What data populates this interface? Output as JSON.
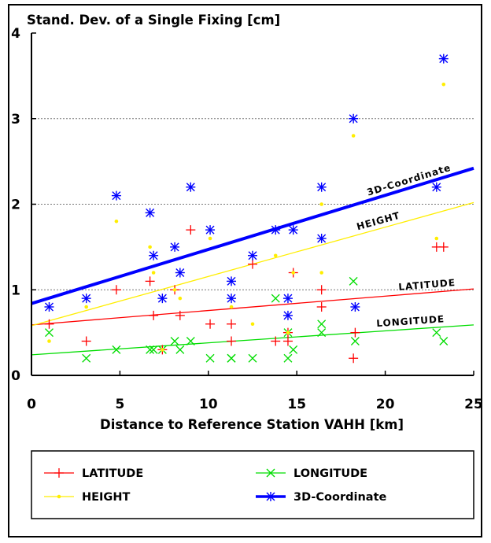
{
  "chart_data": {
    "type": "scatter",
    "title": "Stand. Dev. of a Single Fixing [cm]",
    "xlabel": "Distance to Reference Station VAHH [km]",
    "ylabel": "",
    "xlim": [
      0,
      25
    ],
    "ylim": [
      0,
      4
    ],
    "xticks": [
      "0",
      "5",
      "10",
      "15",
      "20",
      "25"
    ],
    "yticks": [
      "0",
      "1",
      "2",
      "3",
      "4"
    ],
    "grid": "horizontal dashed at y=1,2,3",
    "legend_position": "bottom",
    "series": [
      {
        "name": "LATITUDE",
        "color": "#ff0000",
        "marker": "plus",
        "points": [
          [
            1.0,
            0.6
          ],
          [
            3.1,
            0.4
          ],
          [
            4.8,
            1.0
          ],
          [
            6.7,
            1.1
          ],
          [
            6.9,
            0.7
          ],
          [
            7.4,
            0.3
          ],
          [
            8.1,
            1.0
          ],
          [
            8.4,
            0.7
          ],
          [
            9.0,
            1.7
          ],
          [
            10.1,
            0.6
          ],
          [
            11.3,
            0.6
          ],
          [
            11.3,
            0.4
          ],
          [
            12.5,
            1.3
          ],
          [
            13.8,
            0.4
          ],
          [
            14.5,
            0.4
          ],
          [
            14.5,
            0.5
          ],
          [
            14.8,
            1.2
          ],
          [
            16.4,
            1.0
          ],
          [
            16.4,
            0.8
          ],
          [
            18.2,
            0.2
          ],
          [
            18.3,
            0.5
          ],
          [
            22.9,
            1.5
          ],
          [
            23.3,
            1.5
          ]
        ],
        "trend": [
          [
            0,
            0.59
          ],
          [
            25,
            1.01
          ]
        ],
        "trend_label": "LATITUDE"
      },
      {
        "name": "LONGITUDE",
        "color": "#00dd00",
        "marker": "x",
        "points": [
          [
            1.0,
            0.5
          ],
          [
            3.1,
            0.2
          ],
          [
            4.8,
            0.3
          ],
          [
            6.7,
            0.3
          ],
          [
            6.9,
            0.3
          ],
          [
            7.4,
            0.3
          ],
          [
            8.1,
            0.4
          ],
          [
            8.4,
            0.3
          ],
          [
            9.0,
            0.4
          ],
          [
            10.1,
            0.2
          ],
          [
            11.3,
            0.2
          ],
          [
            11.3,
            0.2
          ],
          [
            12.5,
            0.2
          ],
          [
            13.8,
            0.9
          ],
          [
            14.5,
            0.5
          ],
          [
            14.5,
            0.2
          ],
          [
            14.8,
            0.3
          ],
          [
            16.4,
            0.6
          ],
          [
            16.4,
            0.5
          ],
          [
            18.2,
            1.1
          ],
          [
            18.3,
            0.4
          ],
          [
            22.9,
            0.5
          ],
          [
            23.3,
            0.4
          ]
        ],
        "trend": [
          [
            0,
            0.24
          ],
          [
            25,
            0.59
          ]
        ],
        "trend_label": "LONGITUDE"
      },
      {
        "name": "HEIGHT",
        "color": "#ffee00",
        "marker": "dot",
        "points": [
          [
            1.0,
            0.4
          ],
          [
            3.1,
            0.8
          ],
          [
            4.8,
            1.8
          ],
          [
            6.7,
            1.5
          ],
          [
            6.9,
            1.2
          ],
          [
            7.4,
            0.3
          ],
          [
            8.1,
            1.0
          ],
          [
            8.4,
            0.9
          ],
          [
            10.1,
            1.6
          ],
          [
            11.3,
            0.8
          ],
          [
            12.5,
            0.6
          ],
          [
            13.8,
            1.4
          ],
          [
            14.5,
            0.5
          ],
          [
            14.8,
            1.2
          ],
          [
            16.4,
            1.2
          ],
          [
            16.4,
            2.0
          ],
          [
            18.2,
            2.8
          ],
          [
            22.9,
            1.6
          ],
          [
            23.3,
            3.4
          ]
        ],
        "trend": [
          [
            0,
            0.58
          ],
          [
            25,
            2.02
          ]
        ],
        "trend_label": "HEIGHT"
      },
      {
        "name": "3D-Coordinate",
        "color": "#0000ff",
        "marker": "asterisk",
        "points": [
          [
            1.0,
            0.8
          ],
          [
            3.1,
            0.9
          ],
          [
            4.8,
            2.1
          ],
          [
            6.7,
            1.9
          ],
          [
            6.9,
            1.4
          ],
          [
            7.4,
            0.9
          ],
          [
            8.1,
            1.5
          ],
          [
            8.4,
            1.2
          ],
          [
            9.0,
            2.2
          ],
          [
            10.1,
            1.7
          ],
          [
            11.3,
            1.1
          ],
          [
            11.3,
            0.9
          ],
          [
            12.5,
            1.4
          ],
          [
            13.8,
            1.7
          ],
          [
            14.5,
            0.9
          ],
          [
            14.5,
            0.7
          ],
          [
            14.8,
            1.7
          ],
          [
            16.4,
            2.2
          ],
          [
            16.4,
            1.6
          ],
          [
            18.2,
            3.0
          ],
          [
            18.3,
            0.8
          ],
          [
            22.9,
            2.2
          ],
          [
            23.3,
            3.7
          ]
        ],
        "trend": [
          [
            0,
            0.84
          ],
          [
            25,
            2.42
          ]
        ],
        "trend_label": "3D-Coordinate"
      }
    ]
  }
}
